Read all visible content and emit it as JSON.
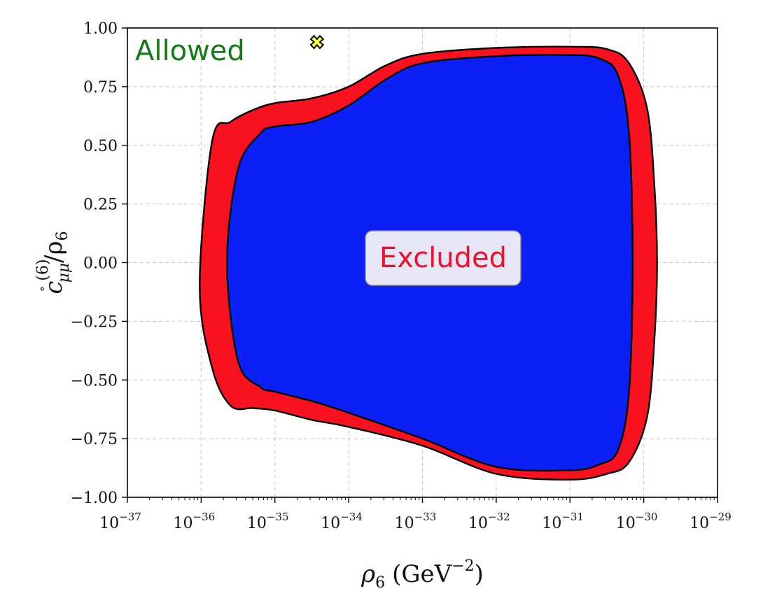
{
  "chart_data": {
    "type": "area",
    "title": "",
    "xlabel_base": "ρ",
    "xlabel_sub": "6",
    "xlabel_unit": "(GeV",
    "xlabel_unit_exp": "−2",
    "xlabel_close": ")",
    "ylabel_base": "c",
    "ylabel_ring": "∘",
    "ylabel_sup": "(6)",
    "ylabel_sub": "μμ",
    "ylabel_slash": "/ρ",
    "ylabel_sub2": "6",
    "x_scale": "log",
    "xlim": [
      1e-37,
      1e-29
    ],
    "ylim": [
      -1.0,
      1.0
    ],
    "grid": true,
    "x_ticks": [
      {
        "exp": -37,
        "base": "10",
        "sup": "−37"
      },
      {
        "exp": -36,
        "base": "10",
        "sup": "−36"
      },
      {
        "exp": -35,
        "base": "10",
        "sup": "−35"
      },
      {
        "exp": -34,
        "base": "10",
        "sup": "−34"
      },
      {
        "exp": -33,
        "base": "10",
        "sup": "−33"
      },
      {
        "exp": -32,
        "base": "10",
        "sup": "−32"
      },
      {
        "exp": -31,
        "base": "10",
        "sup": "−31"
      },
      {
        "exp": -30,
        "base": "10",
        "sup": "−30"
      },
      {
        "exp": -29,
        "base": "10",
        "sup": "−29"
      }
    ],
    "y_ticks": [
      {
        "value": 1.0,
        "label": "1.00"
      },
      {
        "value": 0.75,
        "label": "0.75"
      },
      {
        "value": 0.5,
        "label": "0.50"
      },
      {
        "value": 0.25,
        "label": "0.25"
      },
      {
        "value": 0.0,
        "label": "0.00"
      },
      {
        "value": -0.25,
        "label": "−0.25"
      },
      {
        "value": -0.5,
        "label": "−0.50"
      },
      {
        "value": -0.75,
        "label": "−0.75"
      },
      {
        "value": -1.0,
        "label": "−1.00"
      }
    ],
    "regions": [
      {
        "color": "#f8111f",
        "upper": [
          [
            -36.02,
            -0.1
          ],
          [
            -35.85,
            0.52
          ],
          [
            -35.6,
            0.6
          ],
          [
            -35.3,
            0.65
          ],
          [
            -35.0,
            0.68
          ],
          [
            -34.5,
            0.7
          ],
          [
            -34.0,
            0.75
          ],
          [
            -33.5,
            0.84
          ],
          [
            -33.0,
            0.89
          ],
          [
            -32.0,
            0.915
          ],
          [
            -31.0,
            0.92
          ],
          [
            -30.5,
            0.91
          ],
          [
            -30.2,
            0.85
          ],
          [
            -29.95,
            0.65
          ],
          [
            -29.85,
            0.3
          ],
          [
            -29.82,
            0.0
          ],
          [
            -29.85,
            -0.3
          ],
          [
            -29.95,
            -0.65
          ],
          [
            -30.2,
            -0.85
          ],
          [
            -30.5,
            -0.9
          ],
          [
            -31.0,
            -0.925
          ],
          [
            -32.0,
            -0.9
          ],
          [
            -33.0,
            -0.78
          ],
          [
            -34.0,
            -0.7
          ],
          [
            -34.5,
            -0.67
          ],
          [
            -35.0,
            -0.63
          ],
          [
            -35.3,
            -0.62
          ],
          [
            -35.6,
            -0.61
          ],
          [
            -35.85,
            -0.45
          ],
          [
            -36.02,
            -0.1
          ]
        ]
      },
      {
        "color": "#0a20f5",
        "upper": [
          [
            -35.65,
            0.0
          ],
          [
            -35.5,
            0.4
          ],
          [
            -35.2,
            0.55
          ],
          [
            -35.0,
            0.58
          ],
          [
            -34.5,
            0.6
          ],
          [
            -34.0,
            0.67
          ],
          [
            -33.5,
            0.78
          ],
          [
            -33.0,
            0.85
          ],
          [
            -32.0,
            0.88
          ],
          [
            -31.0,
            0.885
          ],
          [
            -30.6,
            0.87
          ],
          [
            -30.35,
            0.8
          ],
          [
            -30.2,
            0.55
          ],
          [
            -30.15,
            0.0
          ],
          [
            -30.2,
            -0.55
          ],
          [
            -30.35,
            -0.8
          ],
          [
            -30.6,
            -0.86
          ],
          [
            -31.0,
            -0.885
          ],
          [
            -32.0,
            -0.87
          ],
          [
            -33.0,
            -0.75
          ],
          [
            -34.0,
            -0.64
          ],
          [
            -34.5,
            -0.59
          ],
          [
            -35.0,
            -0.55
          ],
          [
            -35.2,
            -0.53
          ],
          [
            -35.5,
            -0.42
          ],
          [
            -35.65,
            0.0
          ]
        ]
      }
    ],
    "marker": {
      "x_exp": -34.43,
      "y": 0.94,
      "symbol": "X",
      "color": "#ffff33"
    },
    "annotations": {
      "allowed": "Allowed",
      "excluded": "Excluded"
    }
  }
}
